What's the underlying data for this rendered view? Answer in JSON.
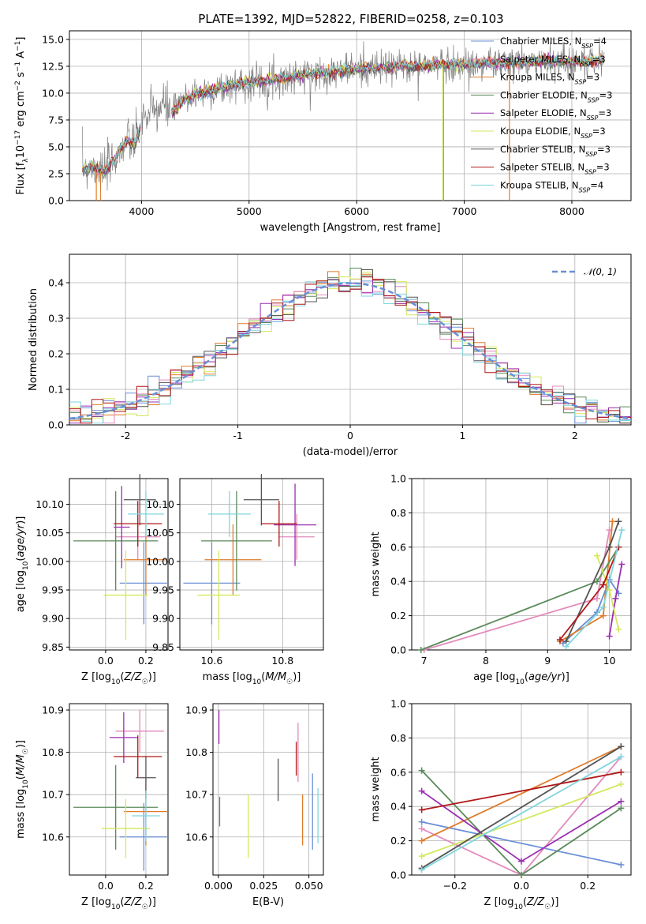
{
  "title": "PLATE=1392, MJD=52822, FIBERID=0258, z=0.103",
  "colors": {
    "chabrier_miles": "#6b8fd6",
    "salpeter_miles": "#e38bbd",
    "kroupa_miles": "#e07b2a",
    "chabrier_elodie": "#5a8a5a",
    "salpeter_elodie": "#9b2fb0",
    "kroupa_elodie": "#d4e85c",
    "chabrier_stelib": "#555555",
    "salpeter_stelib": "#b01818",
    "kroupa_stelib": "#7fd6dc",
    "data": "#808080",
    "normal": "#6b8fd6"
  },
  "chart_data": [
    {
      "panel": "spectrum",
      "type": "line",
      "xlabel": "wavelength [Angstrom, rest frame]",
      "ylabel": "Flux [f_λ 10^-17 erg cm^-2 s^-1 A^-1]",
      "xlim": [
        3330,
        8550
      ],
      "ylim": [
        0,
        15.8
      ],
      "xticks": [
        "4000",
        "5000",
        "6000",
        "7000",
        "8000"
      ],
      "yticks": [
        "0.0",
        "2.5",
        "5.0",
        "7.5",
        "10.0",
        "12.5",
        "15.0"
      ],
      "legend_position": "top-right",
      "legend": [
        {
          "key": "chabrier_miles",
          "label": "Chabrier MILES, N",
          "sub": "SSP",
          "tail": "=4"
        },
        {
          "key": "salpeter_miles",
          "label": "Salpeter MILES, N",
          "sub": "SSP",
          "tail": "=3"
        },
        {
          "key": "kroupa_miles",
          "label": "Kroupa MILES, N",
          "sub": "SSP",
          "tail": "=3"
        },
        {
          "key": "chabrier_elodie",
          "label": "Chabrier ELODIE, N",
          "sub": "SSP",
          "tail": "=3"
        },
        {
          "key": "salpeter_elodie",
          "label": "Salpeter ELODIE, N",
          "sub": "SSP",
          "tail": "=3"
        },
        {
          "key": "kroupa_elodie",
          "label": "Kroupa ELODIE, N",
          "sub": "SSP",
          "tail": "=3"
        },
        {
          "key": "chabrier_stelib",
          "label": "Chabrier STELIB, N",
          "sub": "SSP",
          "tail": "=3"
        },
        {
          "key": "salpeter_stelib",
          "label": "Salpeter STELIB, N",
          "sub": "SSP",
          "tail": "=3"
        },
        {
          "key": "kroupa_stelib",
          "label": "Kroupa STELIB, N",
          "sub": "SSP",
          "tail": "=4"
        }
      ],
      "continuum": [
        [
          3450,
          3.0
        ],
        [
          3550,
          3.2
        ],
        [
          3650,
          2.6
        ],
        [
          3750,
          3.8
        ],
        [
          3850,
          5.5
        ],
        [
          3950,
          5.4
        ],
        [
          4000,
          7.5
        ],
        [
          4100,
          8.2
        ],
        [
          4200,
          8.8
        ],
        [
          4300,
          8.3
        ],
        [
          4400,
          9.4
        ],
        [
          4500,
          9.9
        ],
        [
          4600,
          10.1
        ],
        [
          4700,
          10.3
        ],
        [
          4800,
          10.6
        ],
        [
          4900,
          10.9
        ],
        [
          5000,
          11.0
        ],
        [
          5200,
          11.2
        ],
        [
          5400,
          11.5
        ],
        [
          5600,
          11.8
        ],
        [
          5800,
          12.0
        ],
        [
          6000,
          12.3
        ],
        [
          6200,
          12.3
        ],
        [
          6400,
          12.5
        ],
        [
          6600,
          12.5
        ],
        [
          6800,
          12.7
        ],
        [
          7000,
          12.6
        ],
        [
          7200,
          12.8
        ],
        [
          7400,
          12.8
        ],
        [
          7600,
          12.9
        ],
        [
          7800,
          13.0
        ],
        [
          8000,
          12.9
        ],
        [
          8200,
          13.0
        ],
        [
          8300,
          13.0
        ]
      ],
      "notes": {
        "gap_start": 4000,
        "gap_end": 4280,
        "spike_orange": 7420,
        "spike_green": 6800
      }
    },
    {
      "panel": "residual_histogram",
      "type": "line",
      "xlabel": "(data-model)/error",
      "ylabel": "Normed distribution",
      "xlim": [
        -2.5,
        2.5
      ],
      "ylim": [
        0,
        0.48
      ],
      "xticks": [
        -2,
        -1,
        0,
        1,
        2
      ],
      "yticks": [
        "0.0",
        "0.1",
        "0.2",
        "0.3",
        "0.4"
      ],
      "legend": "𝒩(0, 1)",
      "legend_position": "top-right",
      "bin_width": 0.1,
      "bin_range": [
        -2.5,
        2.5
      ]
    },
    {
      "panel": "age_vs_Z",
      "type": "scatter",
      "xlabel": "Z [log10(Z/Z☉)]",
      "ylabel": "age  [log10(age/yr)]",
      "xlim": [
        -0.18,
        0.31
      ],
      "ylim": [
        9.845,
        10.145
      ],
      "xticks": [
        "0.0",
        "0.2"
      ],
      "yticks": [
        "9.85",
        "9.90",
        "9.95",
        "10.00",
        "10.05",
        "10.10"
      ],
      "points": [
        {
          "key": "chabrier_miles",
          "x": 0.19,
          "y": 9.962,
          "xerr": 0.12,
          "yerr": 0.072
        },
        {
          "key": "salpeter_miles",
          "x": 0.16,
          "y": 10.043,
          "xerr": 0.11,
          "yerr": 0.04
        },
        {
          "key": "kroupa_miles",
          "x": 0.2,
          "y": 10.003,
          "xerr": 0.11,
          "yerr": 0.062
        },
        {
          "key": "chabrier_elodie",
          "x": 0.05,
          "y": 10.036,
          "xerr": 0.21,
          "yerr": 0.087
        },
        {
          "key": "salpeter_elodie",
          "x": 0.08,
          "y": 10.06,
          "xerr": 0.04,
          "yerr": 0.072
        },
        {
          "key": "kroupa_elodie",
          "x": 0.1,
          "y": 9.941,
          "xerr": 0.11,
          "yerr": 0.078
        },
        {
          "key": "chabrier_stelib",
          "x": 0.17,
          "y": 10.108,
          "xerr": 0.08,
          "yerr": 0.045
        },
        {
          "key": "salpeter_stelib",
          "x": 0.16,
          "y": 10.066,
          "xerr": 0.12,
          "yerr": 0.04
        },
        {
          "key": "kroupa_stelib",
          "x": 0.2,
          "y": 10.083,
          "xerr": 0.09,
          "yerr": 0.04
        }
      ]
    },
    {
      "panel": "age_vs_mass",
      "type": "scatter",
      "xlabel": "mass [log10(M/M☉)]",
      "ylabel": "",
      "xlim": [
        10.51,
        10.915
      ],
      "ylim": [
        9.845,
        10.145
      ],
      "xticks": [
        "10.6",
        "10.8"
      ],
      "yticks": [
        "9.85",
        "9.90",
        "9.95",
        "10.00",
        "10.05",
        "10.10"
      ],
      "points": [
        {
          "key": "chabrier_miles",
          "x": 10.6,
          "y": 9.962,
          "xerr": 0.08,
          "yerr": 0.072
        },
        {
          "key": "salpeter_miles",
          "x": 10.84,
          "y": 10.043,
          "xerr": 0.05,
          "yerr": 0.04
        },
        {
          "key": "kroupa_miles",
          "x": 10.66,
          "y": 10.003,
          "xerr": 0.08,
          "yerr": 0.062
        },
        {
          "key": "chabrier_elodie",
          "x": 10.67,
          "y": 10.036,
          "xerr": 0.1,
          "yerr": 0.087
        },
        {
          "key": "salpeter_elodie",
          "x": 10.835,
          "y": 10.064,
          "xerr": 0.06,
          "yerr": 0.072
        },
        {
          "key": "kroupa_elodie",
          "x": 10.62,
          "y": 9.941,
          "xerr": 0.06,
          "yerr": 0.078
        },
        {
          "key": "chabrier_stelib",
          "x": 10.74,
          "y": 10.108,
          "xerr": 0.05,
          "yerr": 0.045
        },
        {
          "key": "salpeter_stelib",
          "x": 10.79,
          "y": 10.066,
          "xerr": 0.05,
          "yerr": 0.04
        },
        {
          "key": "kroupa_stelib",
          "x": 10.65,
          "y": 10.083,
          "xerr": 0.06,
          "yerr": 0.04
        }
      ]
    },
    {
      "panel": "mass_vs_Z",
      "type": "scatter",
      "xlabel": "Z [log10(Z/Z☉)]",
      "ylabel": "mass [log10(M/M☉)]",
      "xlim": [
        -0.18,
        0.31
      ],
      "ylim": [
        10.51,
        10.915
      ],
      "xticks": [
        "0.0",
        "0.2"
      ],
      "yticks": [
        "10.6",
        "10.7",
        "10.8",
        "10.9"
      ],
      "points": [
        {
          "key": "chabrier_miles",
          "x": 0.19,
          "y": 10.6,
          "xerr": 0.12,
          "yerr": 0.08
        },
        {
          "key": "salpeter_miles",
          "x": 0.17,
          "y": 10.85,
          "xerr": 0.12,
          "yerr": 0.05
        },
        {
          "key": "kroupa_miles",
          "x": 0.2,
          "y": 10.66,
          "xerr": 0.11,
          "yerr": 0.08
        },
        {
          "key": "chabrier_elodie",
          "x": 0.05,
          "y": 10.67,
          "xerr": 0.21,
          "yerr": 0.1
        },
        {
          "key": "salpeter_elodie",
          "x": 0.09,
          "y": 10.835,
          "xerr": 0.07,
          "yerr": 0.06
        },
        {
          "key": "kroupa_elodie",
          "x": 0.1,
          "y": 10.62,
          "xerr": 0.12,
          "yerr": 0.07
        },
        {
          "key": "chabrier_stelib",
          "x": 0.2,
          "y": 10.74,
          "xerr": 0.05,
          "yerr": 0.05
        },
        {
          "key": "salpeter_stelib",
          "x": 0.16,
          "y": 10.79,
          "xerr": 0.12,
          "yerr": 0.05
        },
        {
          "key": "kroupa_stelib",
          "x": 0.2,
          "y": 10.65,
          "xerr": 0.07,
          "yerr": 0.06
        }
      ]
    },
    {
      "panel": "mass_vs_EBV",
      "type": "scatter",
      "xlabel": "E(B-V)",
      "ylabel": "",
      "xlim": [
        -0.003,
        0.058
      ],
      "ylim": [
        10.51,
        10.915
      ],
      "xticks": [
        "0.000",
        "0.025",
        "0.050"
      ],
      "yticks": [
        "10.6",
        "10.7",
        "10.8",
        "10.9"
      ],
      "points": [
        {
          "key": "chabrier_miles",
          "x": 0.052,
          "y": 10.66,
          "yerr": 0.09
        },
        {
          "key": "salpeter_miles",
          "x": 0.044,
          "y": 10.8,
          "yerr": 0.07
        },
        {
          "key": "kroupa_miles",
          "x": 0.0465,
          "y": 10.64,
          "yerr": 0.06
        },
        {
          "key": "chabrier_elodie",
          "x": 0.0007,
          "y": 10.66,
          "yerr": 0.035
        },
        {
          "key": "salpeter_elodie",
          "x": 0.0003,
          "y": 10.86,
          "yerr": 0.04
        },
        {
          "key": "kroupa_elodie",
          "x": 0.0165,
          "y": 10.625,
          "yerr": 0.075
        },
        {
          "key": "chabrier_stelib",
          "x": 0.033,
          "y": 10.735,
          "yerr": 0.05
        },
        {
          "key": "salpeter_stelib",
          "x": 0.043,
          "y": 10.785,
          "yerr": 0.04
        },
        {
          "key": "kroupa_stelib",
          "x": 0.055,
          "y": 10.65,
          "yerr": 0.065
        }
      ]
    },
    {
      "panel": "weight_vs_age",
      "type": "line",
      "xlabel": "age  [log10(age/yr)]",
      "ylabel": "mass weight",
      "xlim": [
        6.8,
        10.35
      ],
      "ylim": [
        0,
        1.0
      ],
      "xticks": [
        "7",
        "8",
        "9",
        "10"
      ],
      "yticks": [
        "0.0",
        "0.2",
        "0.4",
        "0.6",
        "0.8",
        "1.0"
      ],
      "series": [
        {
          "key": "chabrier_miles",
          "points": [
            [
              9.25,
              0.04
            ],
            [
              9.8,
              0.22
            ],
            [
              10.0,
              0.41
            ],
            [
              10.15,
              0.33
            ]
          ]
        },
        {
          "key": "salpeter_miles",
          "points": [
            [
              7.0,
              0.0
            ],
            [
              9.8,
              0.3
            ],
            [
              10.0,
              0.7
            ]
          ]
        },
        {
          "key": "kroupa_miles",
          "points": [
            [
              9.2,
              0.05
            ],
            [
              9.9,
              0.2
            ],
            [
              10.05,
              0.75
            ]
          ]
        },
        {
          "key": "chabrier_elodie",
          "points": [
            [
              6.95,
              0.0
            ],
            [
              9.8,
              0.4
            ],
            [
              10.15,
              0.6
            ]
          ]
        },
        {
          "key": "salpeter_elodie",
          "points": [
            [
              10.0,
              0.08
            ],
            [
              10.1,
              0.3
            ],
            [
              10.2,
              0.5
            ]
          ]
        },
        {
          "key": "kroupa_elodie",
          "points": [
            [
              9.8,
              0.55
            ],
            [
              10.0,
              0.35
            ],
            [
              10.15,
              0.12
            ]
          ]
        },
        {
          "key": "chabrier_stelib",
          "points": [
            [
              9.3,
              0.05
            ],
            [
              10.0,
              0.6
            ],
            [
              10.15,
              0.75
            ]
          ]
        },
        {
          "key": "salpeter_stelib",
          "points": [
            [
              9.2,
              0.06
            ],
            [
              9.9,
              0.38
            ],
            [
              10.15,
              0.6
            ]
          ]
        },
        {
          "key": "kroupa_stelib",
          "points": [
            [
              9.3,
              0.02
            ],
            [
              9.9,
              0.25
            ],
            [
              10.2,
              0.7
            ]
          ]
        }
      ]
    },
    {
      "panel": "weight_vs_Z",
      "type": "line",
      "xlabel": "Z [log10(Z/Z☉)]",
      "ylabel": "mass weight",
      "xlim": [
        -0.33,
        0.33
      ],
      "ylim": [
        0,
        1.0
      ],
      "xticks": [
        "−0.2",
        "0.0",
        "0.2"
      ],
      "yticks": [
        "0.0",
        "0.2",
        "0.4",
        "0.6",
        "0.8",
        "1.0"
      ],
      "series": [
        {
          "key": "chabrier_miles",
          "points": [
            [
              -0.3,
              0.31
            ],
            [
              0.3,
              0.06
            ]
          ]
        },
        {
          "key": "salpeter_miles",
          "points": [
            [
              -0.3,
              0.27
            ],
            [
              0.0,
              0.0
            ],
            [
              0.3,
              0.69
            ]
          ]
        },
        {
          "key": "kroupa_miles",
          "points": [
            [
              -0.3,
              0.2
            ],
            [
              0.3,
              0.75
            ]
          ]
        },
        {
          "key": "chabrier_elodie",
          "points": [
            [
              -0.3,
              0.61
            ],
            [
              0.0,
              0.0
            ],
            [
              0.3,
              0.39
            ]
          ]
        },
        {
          "key": "salpeter_elodie",
          "points": [
            [
              -0.3,
              0.49
            ],
            [
              0.0,
              0.08
            ],
            [
              0.3,
              0.43
            ]
          ]
        },
        {
          "key": "kroupa_elodie",
          "points": [
            [
              -0.3,
              0.11
            ],
            [
              0.3,
              0.53
            ]
          ]
        },
        {
          "key": "chabrier_stelib",
          "points": [
            [
              -0.3,
              0.04
            ],
            [
              0.3,
              0.75
            ]
          ]
        },
        {
          "key": "salpeter_stelib",
          "points": [
            [
              -0.3,
              0.38
            ],
            [
              0.3,
              0.6
            ]
          ]
        },
        {
          "key": "kroupa_stelib",
          "points": [
            [
              -0.3,
              0.03
            ],
            [
              0.3,
              0.69
            ]
          ]
        }
      ]
    }
  ]
}
